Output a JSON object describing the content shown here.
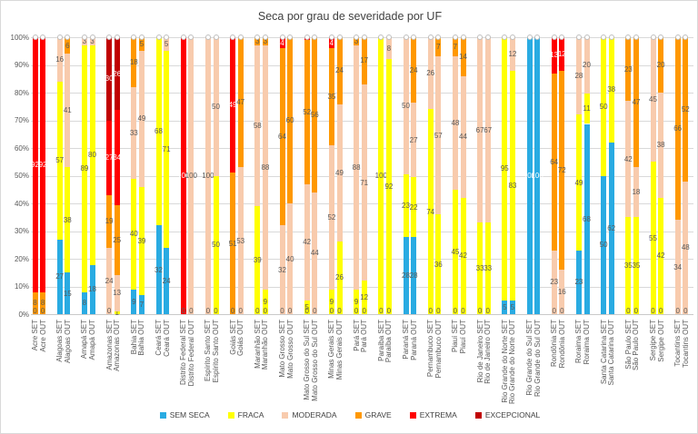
{
  "chart_data": {
    "type": "bar",
    "subtype": "stacked-100-percent",
    "title": "Seca por grau de severidade por UF",
    "y_axis": {
      "min": 0,
      "max": 100,
      "grid": true,
      "ticks": [
        "100%",
        "90%",
        "80%",
        "70%",
        "60%",
        "50%",
        "40%",
        "30%",
        "20%",
        "10%",
        "0%"
      ]
    },
    "legend_position": "bottom",
    "series": [
      {
        "name": "SEM SECA",
        "color": "#29ABE2"
      },
      {
        "name": "FRACA",
        "color": "#FFFF00"
      },
      {
        "name": "MODERADA",
        "color": "#F8CBAD"
      },
      {
        "name": "GRAVE",
        "color": "#FF9800"
      },
      {
        "name": "EXTREMA",
        "color": "#FF0000"
      },
      {
        "name": "EXCEPCIONAL",
        "color": "#C00000"
      }
    ],
    "label_colors": {
      "default": "#595959",
      "on_dark": "#FFFFFF"
    },
    "bars": [
      {
        "category": "Acre SET",
        "baseline_label": "0",
        "segments": [
          {
            "series": "GRAVE",
            "value": 8
          },
          {
            "series": "EXTREMA",
            "value": 92
          }
        ]
      },
      {
        "category": "Acre OUT",
        "baseline_label": "0",
        "segments": [
          {
            "series": "GRAVE",
            "value": 8
          },
          {
            "series": "EXTREMA",
            "value": 92
          }
        ]
      },
      {
        "category": "Alagoas SET",
        "segments": [
          {
            "series": "SEM SECA",
            "value": 27
          },
          {
            "series": "FRACA",
            "value": 57
          },
          {
            "series": "MODERADA",
            "value": 16
          }
        ]
      },
      {
        "category": "Alagoas OUT",
        "segments": [
          {
            "series": "SEM SECA",
            "value": 15
          },
          {
            "series": "FRACA",
            "value": 38
          },
          {
            "series": "MODERADA",
            "value": 41
          },
          {
            "series": "GRAVE",
            "value": 6
          }
        ]
      },
      {
        "category": "Amapá SET",
        "segments": [
          {
            "series": "SEM SECA",
            "value": 8
          },
          {
            "series": "FRACA",
            "value": 89
          },
          {
            "series": "MODERADA",
            "value": 3
          }
        ]
      },
      {
        "category": "Amapá OUT",
        "segments": [
          {
            "series": "SEM SECA",
            "value": 18
          },
          {
            "series": "FRACA",
            "value": 80
          },
          {
            "series": "MODERADA",
            "value": 3
          }
        ]
      },
      {
        "category": "Amazonas SET",
        "baseline_label": "0",
        "segments": [
          {
            "series": "MODERADA",
            "value": 24
          },
          {
            "series": "GRAVE",
            "value": 19
          },
          {
            "series": "EXTREMA",
            "value": 27
          },
          {
            "series": "EXCEPCIONAL",
            "value": 30
          }
        ]
      },
      {
        "category": "Amazonas OUT",
        "segments": [
          {
            "series": "FRACA",
            "value": 1
          },
          {
            "series": "MODERADA",
            "value": 13
          },
          {
            "series": "GRAVE",
            "value": 25
          },
          {
            "series": "EXTREMA",
            "value": 34
          },
          {
            "series": "EXCEPCIONAL",
            "value": 26
          }
        ]
      },
      {
        "category": "Bahia SET",
        "segments": [
          {
            "series": "SEM SECA",
            "value": 9
          },
          {
            "series": "FRACA",
            "value": 40
          },
          {
            "series": "MODERADA",
            "value": 33
          },
          {
            "series": "GRAVE",
            "value": 18
          }
        ]
      },
      {
        "category": "Bahia OUT",
        "segments": [
          {
            "series": "SEM SECA",
            "value": 7
          },
          {
            "series": "FRACA",
            "value": 39
          },
          {
            "series": "MODERADA",
            "value": 49
          },
          {
            "series": "GRAVE",
            "value": 5
          }
        ]
      },
      {
        "category": "Ceará SET",
        "segments": [
          {
            "series": "SEM SECA",
            "value": 32
          },
          {
            "series": "FRACA",
            "value": 68
          }
        ]
      },
      {
        "category": "Ceará OUT",
        "segments": [
          {
            "series": "SEM SECA",
            "value": 24
          },
          {
            "series": "FRACA",
            "value": 71
          },
          {
            "series": "MODERADA",
            "value": 5
          }
        ]
      },
      {
        "category": "Distrito Federal SET",
        "baseline_label": "0",
        "segments": [
          {
            "series": "EXTREMA",
            "value": 100
          }
        ]
      },
      {
        "category": "Distrito Federal OUT",
        "baseline_label": "0",
        "segments": [
          {
            "series": "MODERADA",
            "value": 100
          }
        ]
      },
      {
        "category": "Espírito Santo SET",
        "baseline_label": "0",
        "segments": [
          {
            "series": "MODERADA",
            "value": 100
          }
        ]
      },
      {
        "category": "Espírito Santo OUT",
        "baseline_label": "0",
        "segments": [
          {
            "series": "FRACA",
            "value": 50
          },
          {
            "series": "MODERADA",
            "value": 50
          }
        ]
      },
      {
        "category": "Goiás SET",
        "baseline_label": "0",
        "segments": [
          {
            "series": "GRAVE",
            "value": 51
          },
          {
            "series": "EXTREMA",
            "value": 49
          }
        ]
      },
      {
        "category": "Goiás OUT",
        "baseline_label": "0",
        "segments": [
          {
            "series": "MODERADA",
            "value": 53
          },
          {
            "series": "GRAVE",
            "value": 47
          }
        ]
      },
      {
        "category": "Maranhão SET",
        "baseline_label": "0",
        "segments": [
          {
            "series": "FRACA",
            "value": 39
          },
          {
            "series": "MODERADA",
            "value": 58
          },
          {
            "series": "GRAVE",
            "value": 3
          }
        ]
      },
      {
        "category": "Maranhão OUT",
        "baseline_label": "0",
        "segments": [
          {
            "series": "FRACA",
            "value": 9
          },
          {
            "series": "MODERADA",
            "value": 88
          },
          {
            "series": "GRAVE",
            "value": 3
          }
        ]
      },
      {
        "category": "Mato Grosso SET",
        "baseline_label": "0",
        "segments": [
          {
            "series": "MODERADA",
            "value": 32
          },
          {
            "series": "GRAVE",
            "value": 64
          },
          {
            "series": "EXTREMA",
            "value": 4
          }
        ]
      },
      {
        "category": "Mato Grosso OUT",
        "baseline_label": "0",
        "segments": [
          {
            "series": "MODERADA",
            "value": 40
          },
          {
            "series": "GRAVE",
            "value": 60
          }
        ]
      },
      {
        "category": "Mato Grosso do Sul SET",
        "baseline_label": "0",
        "segments": [
          {
            "series": "FRACA",
            "value": 5
          },
          {
            "series": "MODERADA",
            "value": 42
          },
          {
            "series": "GRAVE",
            "value": 52
          },
          {
            "series": "EXTREMA",
            "value": 1,
            "hide_label": true
          }
        ]
      },
      {
        "category": "Mato Grosso do Sul OUT",
        "baseline_label": "0",
        "segments": [
          {
            "series": "MODERADA",
            "value": 44
          },
          {
            "series": "GRAVE",
            "value": 56
          }
        ]
      },
      {
        "category": "Minas Gerais SET",
        "baseline_label": "0",
        "segments": [
          {
            "series": "FRACA",
            "value": 9
          },
          {
            "series": "MODERADA",
            "value": 52
          },
          {
            "series": "GRAVE",
            "value": 35
          },
          {
            "series": "EXTREMA",
            "value": 4
          }
        ]
      },
      {
        "category": "Minas Gerais OUT",
        "baseline_label": "0",
        "segments": [
          {
            "series": "FRACA",
            "value": 26
          },
          {
            "series": "MODERADA",
            "value": 49
          },
          {
            "series": "GRAVE",
            "value": 24
          }
        ]
      },
      {
        "category": "Pará SET",
        "baseline_label": "0",
        "segments": [
          {
            "series": "FRACA",
            "value": 9
          },
          {
            "series": "MODERADA",
            "value": 88
          },
          {
            "series": "GRAVE",
            "value": 3
          }
        ]
      },
      {
        "category": "Pará OUT",
        "baseline_label": "0",
        "segments": [
          {
            "series": "FRACA",
            "value": 12
          },
          {
            "series": "MODERADA",
            "value": 71
          },
          {
            "series": "GRAVE",
            "value": 17
          }
        ]
      },
      {
        "category": "Paraíba SET",
        "baseline_label": "0",
        "segments": [
          {
            "series": "FRACA",
            "value": 100
          }
        ]
      },
      {
        "category": "Paraíba OUT",
        "baseline_label": "0",
        "segments": [
          {
            "series": "FRACA",
            "value": 92
          },
          {
            "series": "MODERADA",
            "value": 8
          }
        ]
      },
      {
        "category": "Paraná SET",
        "segments": [
          {
            "series": "SEM SECA",
            "value": 28
          },
          {
            "series": "FRACA",
            "value": 23
          },
          {
            "series": "MODERADA",
            "value": 50
          }
        ]
      },
      {
        "category": "Paraná OUT",
        "segments": [
          {
            "series": "SEM SECA",
            "value": 28
          },
          {
            "series": "FRACA",
            "value": 22
          },
          {
            "series": "MODERADA",
            "value": 27
          },
          {
            "series": "GRAVE",
            "value": 24
          }
        ]
      },
      {
        "category": "Pernambuco SET",
        "baseline_label": "0",
        "segments": [
          {
            "series": "FRACA",
            "value": 74
          },
          {
            "series": "MODERADA",
            "value": 26
          }
        ]
      },
      {
        "category": "Pernambuco OUT",
        "baseline_label": "0",
        "segments": [
          {
            "series": "FRACA",
            "value": 36
          },
          {
            "series": "MODERADA",
            "value": 57
          },
          {
            "series": "GRAVE",
            "value": 7
          }
        ]
      },
      {
        "category": "Piauí SET",
        "baseline_label": "0",
        "segments": [
          {
            "series": "FRACA",
            "value": 45
          },
          {
            "series": "MODERADA",
            "value": 48
          },
          {
            "series": "GRAVE",
            "value": 7
          }
        ]
      },
      {
        "category": "Piauí OUT",
        "baseline_label": "0",
        "segments": [
          {
            "series": "FRACA",
            "value": 42
          },
          {
            "series": "MODERADA",
            "value": 44
          },
          {
            "series": "GRAVE",
            "value": 14
          }
        ]
      },
      {
        "category": "Rio de Janeiro SET",
        "baseline_label": "0",
        "segments": [
          {
            "series": "FRACA",
            "value": 33
          },
          {
            "series": "MODERADA",
            "value": 67
          }
        ]
      },
      {
        "category": "Rio de Janeiro OUT",
        "baseline_label": "0",
        "segments": [
          {
            "series": "FRACA",
            "value": 33
          },
          {
            "series": "MODERADA",
            "value": 67
          }
        ]
      },
      {
        "category": "Rio Grande do Norte SET",
        "segments": [
          {
            "series": "SEM SECA",
            "value": 5
          },
          {
            "series": "FRACA",
            "value": 95
          }
        ]
      },
      {
        "category": "Rio Grande do Norte OUT",
        "segments": [
          {
            "series": "SEM SECA",
            "value": 5
          },
          {
            "series": "FRACA",
            "value": 83
          },
          {
            "series": "MODERADA",
            "value": 12
          }
        ]
      },
      {
        "category": "Rio Grande do Sul SET",
        "segments": [
          {
            "series": "SEM SECA",
            "value": 100
          }
        ]
      },
      {
        "category": "Rio Grande do Sul OUT",
        "segments": [
          {
            "series": "SEM SECA",
            "value": 100
          }
        ]
      },
      {
        "category": "Rondônia SET",
        "baseline_label": "0",
        "segments": [
          {
            "series": "MODERADA",
            "value": 23
          },
          {
            "series": "GRAVE",
            "value": 64
          },
          {
            "series": "EXTREMA",
            "value": 13
          }
        ]
      },
      {
        "category": "Rondônia OUT",
        "baseline_label": "0",
        "segments": [
          {
            "series": "MODERADA",
            "value": 16
          },
          {
            "series": "GRAVE",
            "value": 72
          },
          {
            "series": "EXTREMA",
            "value": 12
          }
        ]
      },
      {
        "category": "Roraima SET",
        "segments": [
          {
            "series": "SEM SECA",
            "value": 23
          },
          {
            "series": "FRACA",
            "value": 49
          },
          {
            "series": "MODERADA",
            "value": 28
          }
        ]
      },
      {
        "category": "Roraima OUT",
        "segments": [
          {
            "series": "SEM SECA",
            "value": 68
          },
          {
            "series": "FRACA",
            "value": 11
          },
          {
            "series": "MODERADA",
            "value": 20
          }
        ]
      },
      {
        "category": "Santa Catarina SET",
        "segments": [
          {
            "series": "SEM SECA",
            "value": 50
          },
          {
            "series": "FRACA",
            "value": 50
          }
        ]
      },
      {
        "category": "Santa Catarina OUT",
        "segments": [
          {
            "series": "SEM SECA",
            "value": 62
          },
          {
            "series": "FRACA",
            "value": 38
          }
        ]
      },
      {
        "category": "São Paulo SET",
        "baseline_label": "0",
        "segments": [
          {
            "series": "FRACA",
            "value": 35
          },
          {
            "series": "MODERADA",
            "value": 42
          },
          {
            "series": "GRAVE",
            "value": 23
          }
        ]
      },
      {
        "category": "São Paulo OUT",
        "baseline_label": "0",
        "segments": [
          {
            "series": "FRACA",
            "value": 35
          },
          {
            "series": "MODERADA",
            "value": 18
          },
          {
            "series": "GRAVE",
            "value": 47
          }
        ]
      },
      {
        "category": "Sergipe SET",
        "baseline_label": "0",
        "segments": [
          {
            "series": "FRACA",
            "value": 55
          },
          {
            "series": "MODERADA",
            "value": 45
          }
        ]
      },
      {
        "category": "Sergipe OUT",
        "baseline_label": "0",
        "segments": [
          {
            "series": "FRACA",
            "value": 42
          },
          {
            "series": "MODERADA",
            "value": 38
          },
          {
            "series": "GRAVE",
            "value": 20
          }
        ]
      },
      {
        "category": "Tocantins SET",
        "baseline_label": "0",
        "segments": [
          {
            "series": "MODERADA",
            "value": 34
          },
          {
            "series": "GRAVE",
            "value": 66
          }
        ]
      },
      {
        "category": "Tocantins OUT",
        "baseline_label": "0",
        "segments": [
          {
            "series": "MODERADA",
            "value": 48
          },
          {
            "series": "GRAVE",
            "value": 52
          }
        ]
      }
    ]
  }
}
